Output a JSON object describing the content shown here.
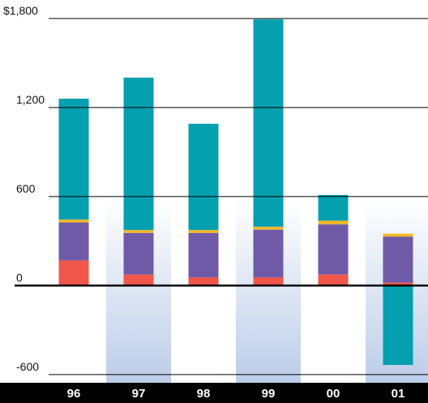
{
  "chart_data": {
    "type": "stacked_bar",
    "categories": [
      "96",
      "97",
      "98",
      "99",
      "00",
      "01"
    ],
    "series": [
      {
        "color": "#f0564a",
        "values": [
          170,
          75,
          55,
          55,
          75,
          20
        ]
      },
      {
        "color": "#6f5aa8",
        "values": [
          255,
          280,
          300,
          322,
          338,
          310
        ]
      },
      {
        "color": "#f2b62a",
        "values": [
          20,
          20,
          20,
          20,
          25,
          20
        ]
      },
      {
        "color": "#05a0b0",
        "values": [
          815,
          1027,
          716,
          1398,
          173,
          -535
        ]
      }
    ],
    "ylim": [
      -655,
      1925
    ],
    "yticks": [
      -600,
      0,
      600,
      {
        "value": 1200,
        "label": "1,200"
      },
      {
        "value": 1800,
        "label": "$1,800"
      }
    ],
    "grid": true
  }
}
